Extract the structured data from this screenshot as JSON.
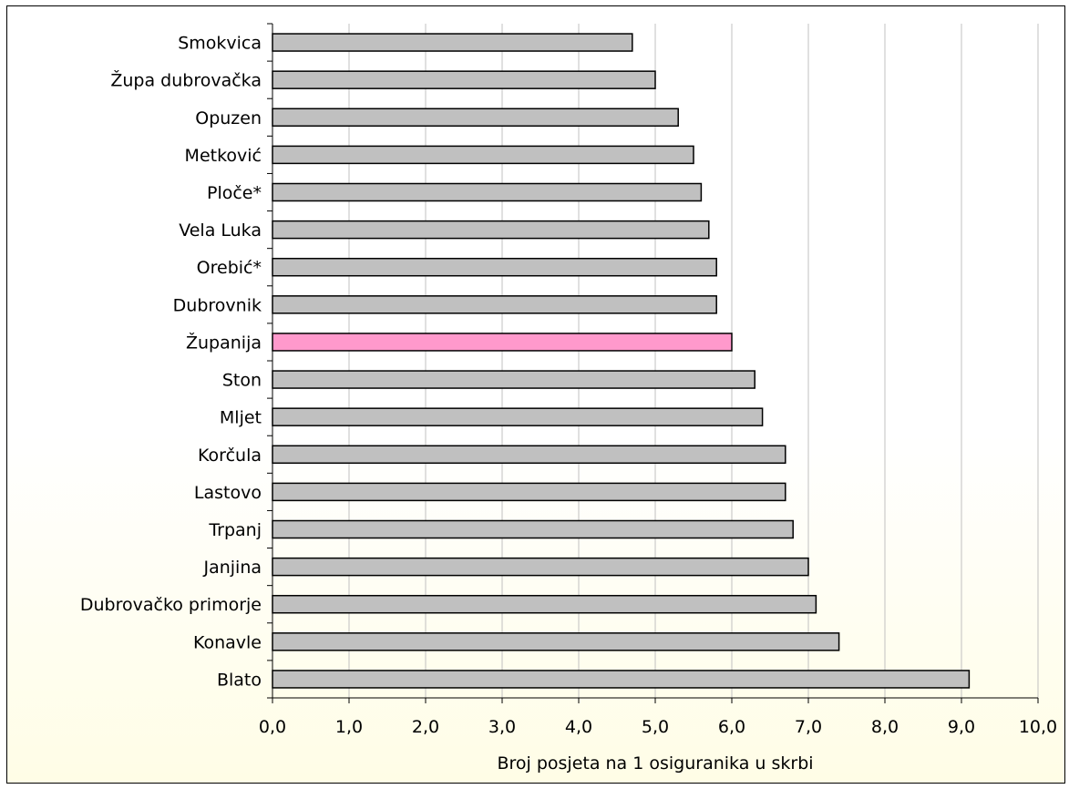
{
  "chart_data": {
    "type": "bar",
    "orientation": "horizontal",
    "categories": [
      "Smokvica",
      "Župa dubrovačka",
      "Opuzen",
      "Metković",
      "Ploče*",
      "Vela Luka",
      "Orebić*",
      "Dubrovnik",
      "Županija",
      "Ston",
      "Mljet",
      "Korčula",
      "Lastovo",
      "Trpanj",
      "Janjina",
      "Dubrovačko primorje",
      "Konavle",
      "Blato"
    ],
    "values": [
      4.7,
      5.0,
      5.3,
      5.5,
      5.6,
      5.7,
      5.8,
      5.8,
      6.0,
      6.3,
      6.4,
      6.7,
      6.7,
      6.8,
      7.0,
      7.1,
      7.4,
      9.1
    ],
    "highlight_category": "Županija",
    "colors": {
      "bar": "#c0c0c0",
      "highlight_bar": "#ff99cc",
      "bar_border": "#000000",
      "gridline": "#c0c0c0"
    },
    "xlabel": "Broj posjeta na 1 osiguranika u skrbi",
    "xlim": [
      0,
      10
    ],
    "x_ticks": [
      0,
      1,
      2,
      3,
      4,
      5,
      6,
      7,
      8,
      9,
      10
    ],
    "x_tick_labels": [
      "0,0",
      "1,0",
      "2,0",
      "3,0",
      "4,0",
      "5,0",
      "6,0",
      "7,0",
      "8,0",
      "9,0",
      "10,0"
    ],
    "grid": true,
    "legend": "none"
  }
}
